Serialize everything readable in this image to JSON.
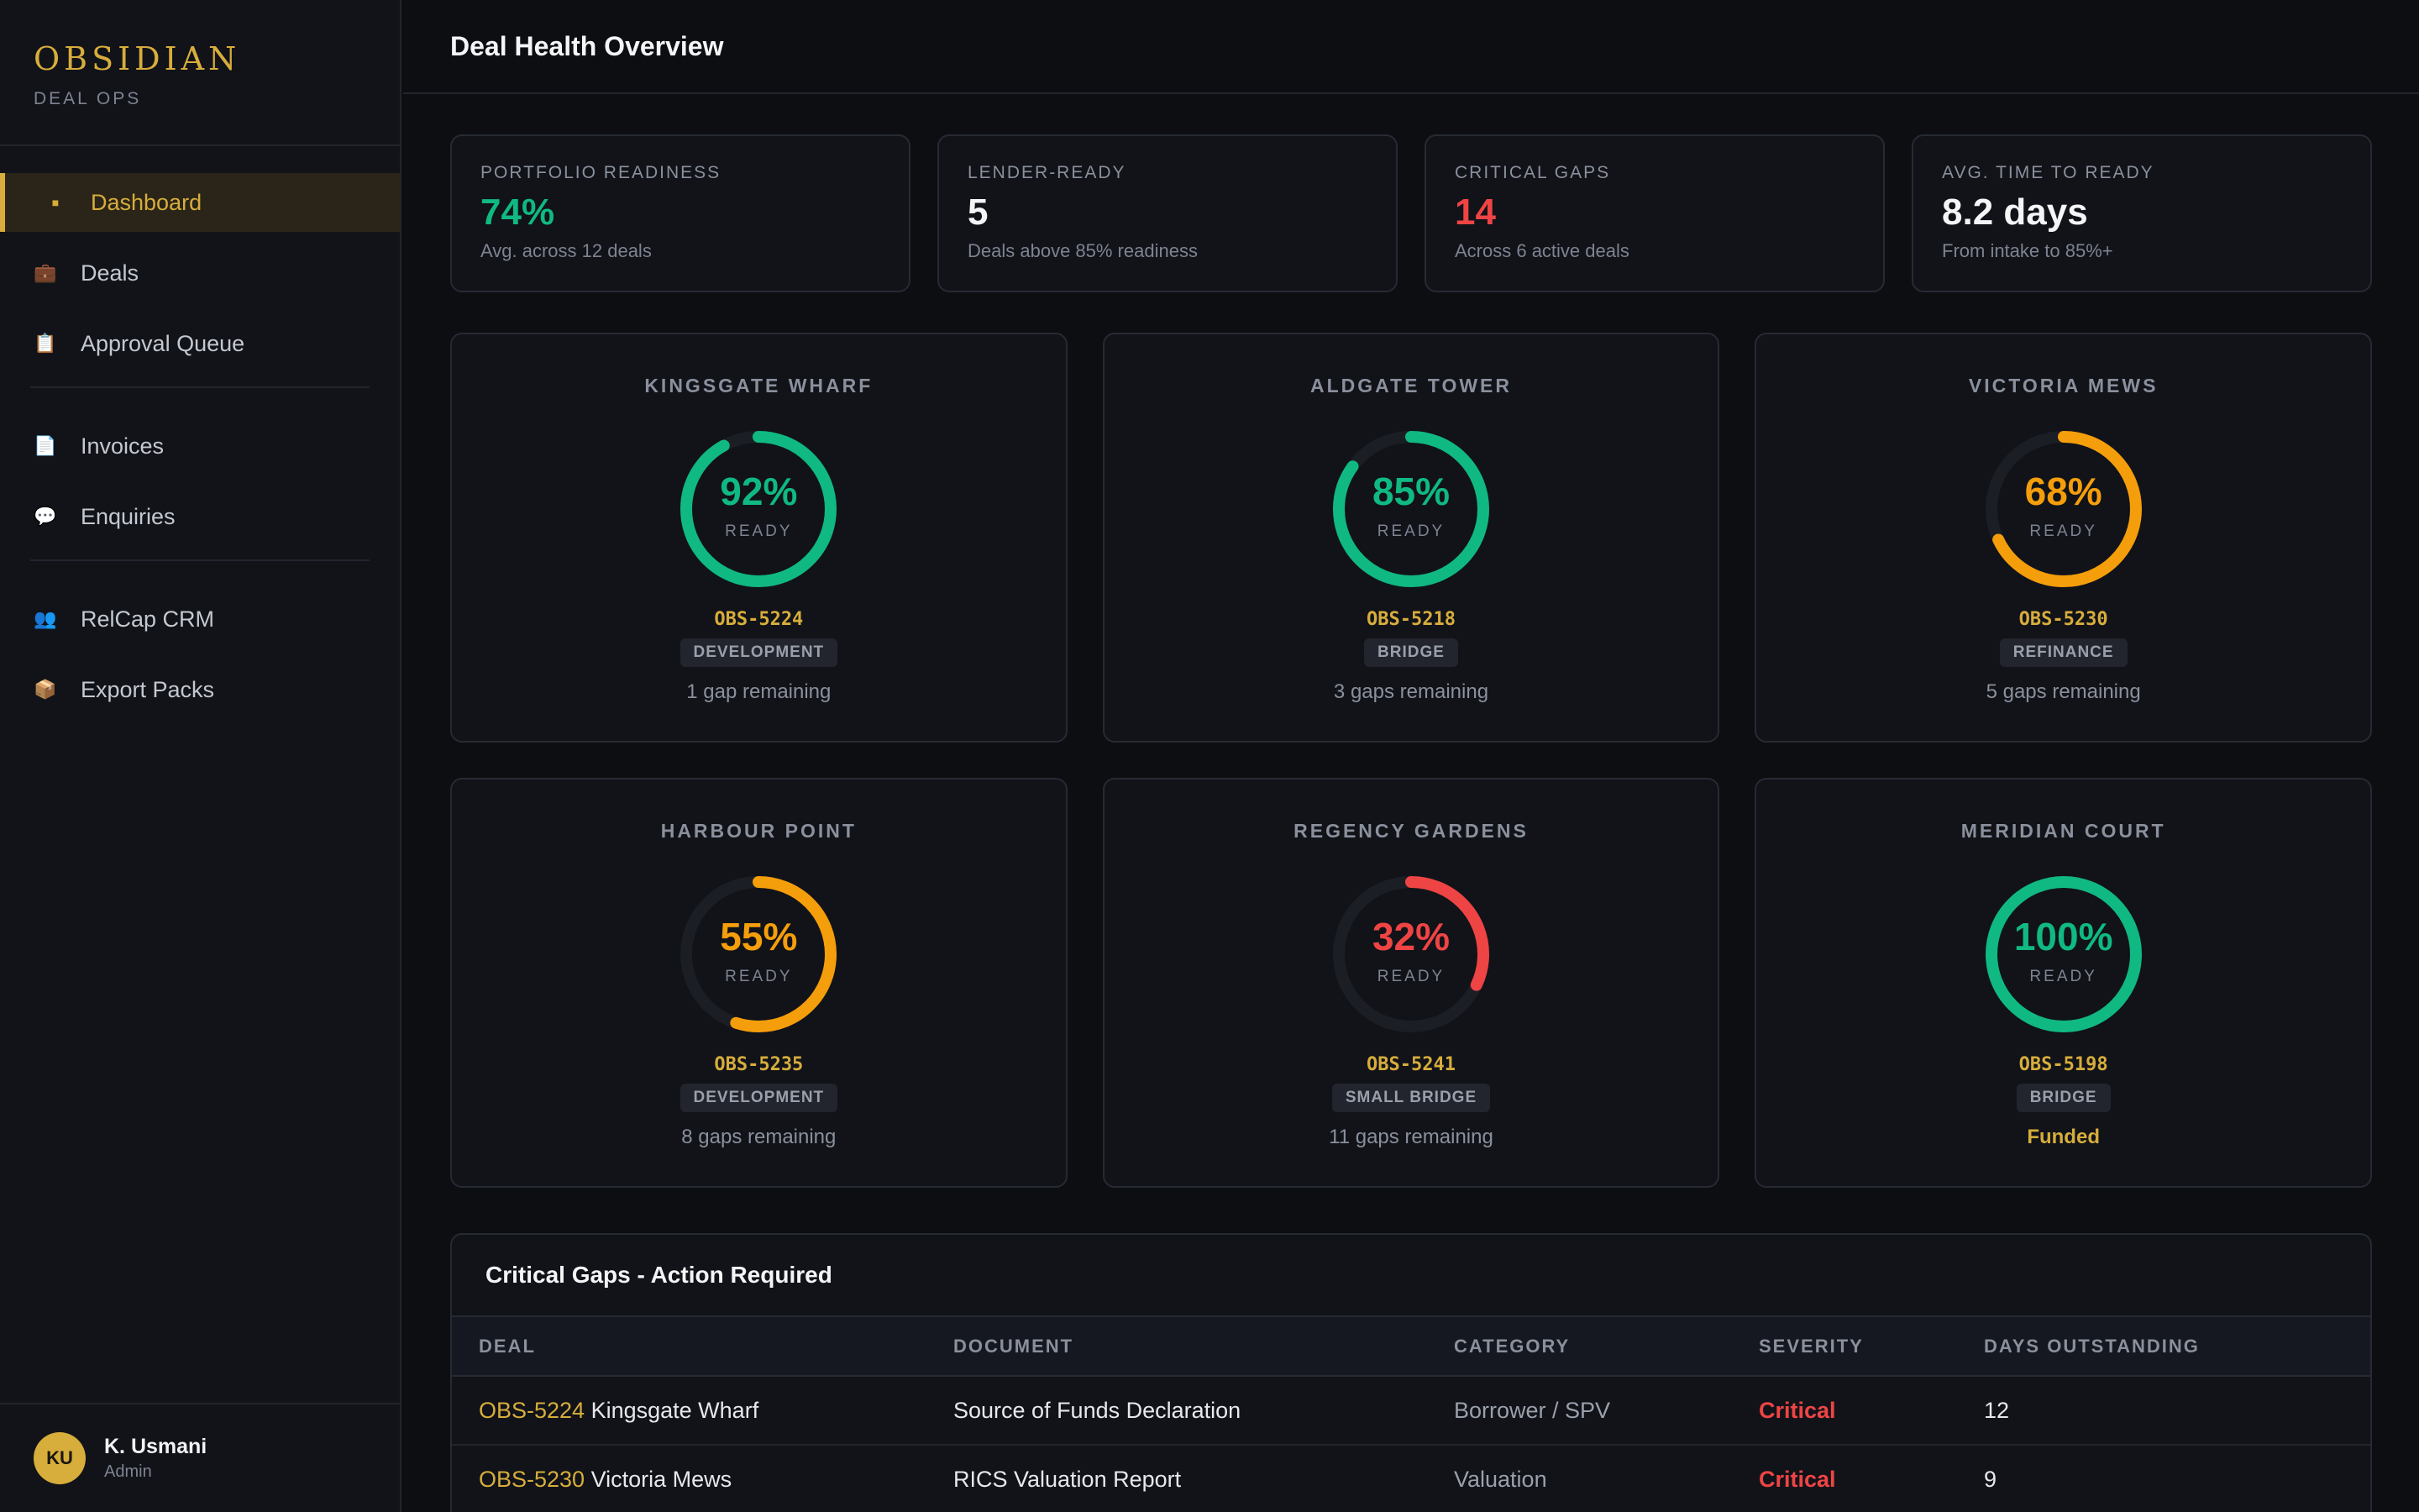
{
  "brand": {
    "name": "OBSIDIAN",
    "subtitle": "DEAL OPS"
  },
  "sidebar": {
    "items": [
      {
        "label": "Dashboard",
        "icon": "square-bullet-icon",
        "glyph": "■",
        "active": true
      },
      {
        "label": "Deals",
        "icon": "briefcase-icon",
        "glyph": "💼"
      },
      {
        "label": "Approval Queue",
        "icon": "clipboard-icon",
        "glyph": "📋"
      },
      {
        "label": "Invoices",
        "icon": "document-icon",
        "glyph": "📄"
      },
      {
        "label": "Enquiries",
        "icon": "speech-bubble-icon",
        "glyph": "💬"
      },
      {
        "label": "RelCap CRM",
        "icon": "people-icon",
        "glyph": "👥"
      },
      {
        "label": "Export Packs",
        "icon": "package-icon",
        "glyph": "📦"
      }
    ]
  },
  "user": {
    "initials": "KU",
    "name": "K. Usmani",
    "role": "Admin"
  },
  "header": {
    "title": "Deal Health Overview"
  },
  "stats": [
    {
      "label": "PORTFOLIO READINESS",
      "value": "74%",
      "sub": "Avg. across 12 deals",
      "color": "#10b981"
    },
    {
      "label": "LENDER-READY",
      "value": "5",
      "sub": "Deals above 85% readiness",
      "color": "#f4f5f7"
    },
    {
      "label": "CRITICAL GAPS",
      "value": "14",
      "sub": "Across 6 active deals",
      "color": "#ef4444"
    },
    {
      "label": "AVG. TIME TO READY",
      "value": "8.2 days",
      "sub": "From intake to 85%+",
      "color": "#f4f5f7"
    }
  ],
  "deals": [
    {
      "name": "KINGSGATE WHARF",
      "percent": 92,
      "percent_label": "92%",
      "ready_label": "READY",
      "id": "OBS-5224",
      "type": "DEVELOPMENT",
      "status": "1 gap remaining",
      "color": "#10b981",
      "funded": false
    },
    {
      "name": "ALDGATE TOWER",
      "percent": 85,
      "percent_label": "85%",
      "ready_label": "READY",
      "id": "OBS-5218",
      "type": "BRIDGE",
      "status": "3 gaps remaining",
      "color": "#10b981",
      "funded": false
    },
    {
      "name": "VICTORIA MEWS",
      "percent": 68,
      "percent_label": "68%",
      "ready_label": "READY",
      "id": "OBS-5230",
      "type": "REFINANCE",
      "status": "5 gaps remaining",
      "color": "#f59e0b",
      "funded": false
    },
    {
      "name": "HARBOUR POINT",
      "percent": 55,
      "percent_label": "55%",
      "ready_label": "READY",
      "id": "OBS-5235",
      "type": "DEVELOPMENT",
      "status": "8 gaps remaining",
      "color": "#f59e0b",
      "funded": false
    },
    {
      "name": "REGENCY GARDENS",
      "percent": 32,
      "percent_label": "32%",
      "ready_label": "READY",
      "id": "OBS-5241",
      "type": "SMALL BRIDGE",
      "status": "11 gaps remaining",
      "color": "#ef4444",
      "funded": false
    },
    {
      "name": "MERIDIAN COURT",
      "percent": 100,
      "percent_label": "100%",
      "ready_label": "READY",
      "id": "OBS-5198",
      "type": "BRIDGE",
      "status": "Funded",
      "color": "#10b981",
      "funded": true
    }
  ],
  "gaps": {
    "title": "Critical Gaps - Action Required",
    "columns": [
      "DEAL",
      "DOCUMENT",
      "CATEGORY",
      "SEVERITY",
      "DAYS OUTSTANDING"
    ],
    "rows": [
      {
        "deal_id": "OBS-5224",
        "deal_name": "Kingsgate Wharf",
        "document": "Source of Funds Declaration",
        "category": "Borrower / SPV",
        "severity": "Critical",
        "days": "12"
      },
      {
        "deal_id": "OBS-5230",
        "deal_name": "Victoria Mews",
        "document": "RICS Valuation Report",
        "category": "Valuation",
        "severity": "Critical",
        "days": "9"
      }
    ]
  }
}
